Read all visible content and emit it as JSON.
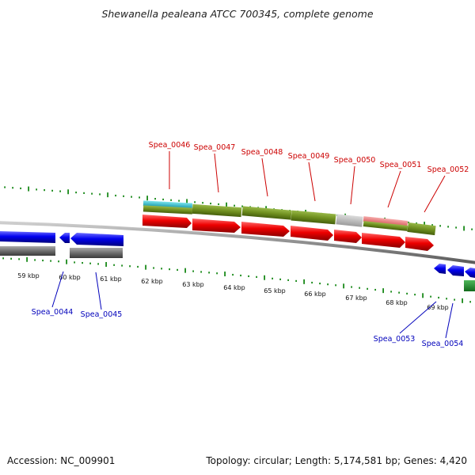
{
  "title": "Shewanella pealeana ATCC 700345, complete genome",
  "footer": {
    "accession": "Accession: NC_009901",
    "summary": "Topology: circular; Length: 5,174,581 bp; Genes: 4,420"
  },
  "scale_labels": [
    "59 kbp",
    "60 kbp",
    "61 kbp",
    "62 kbp",
    "63 kbp",
    "64 kbp",
    "65 kbp",
    "66 kbp",
    "67 kbp",
    "68 kbp",
    "69 kbp"
  ],
  "genes_forward": [
    {
      "locus": "Spea_0046",
      "label_color": "#cc0000"
    },
    {
      "locus": "Spea_0047",
      "label_color": "#cc0000"
    },
    {
      "locus": "Spea_0048",
      "label_color": "#cc0000"
    },
    {
      "locus": "Spea_0049",
      "label_color": "#cc0000"
    },
    {
      "locus": "Spea_0050",
      "label_color": "#cc0000"
    },
    {
      "locus": "Spea_0051",
      "label_color": "#cc0000"
    },
    {
      "locus": "Spea_0052",
      "label_color": "#cc0000"
    }
  ],
  "genes_reverse": [
    {
      "locus": "Spea_0044",
      "label_color": "#0000bb"
    },
    {
      "locus": "Spea_0045",
      "label_color": "#0000bb"
    },
    {
      "locus": "Spea_0053",
      "label_color": "#0000bb"
    },
    {
      "locus": "Spea_0054",
      "label_color": "#0000bb"
    }
  ],
  "colors": {
    "forward_cds": "#ee0000",
    "reverse_cds": "#0000ee",
    "reverse_feature": "#6e6e6e",
    "forward_feature": "#6f8f1f",
    "feature_cyan": "#2ab9c8",
    "feature_salmon": "#e87b7b",
    "feature_grey": "#b9b9b9",
    "gc_ticks": "#1a8a1a",
    "backbone": "#8d8d8d",
    "green_block": "#1e8a2a"
  }
}
